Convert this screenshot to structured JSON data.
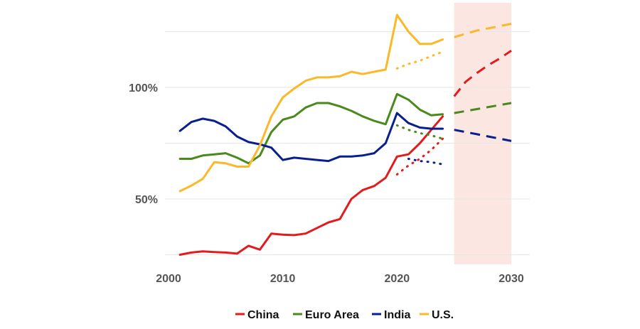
{
  "chart_data": {
    "type": "line",
    "title": "",
    "xlabel": "",
    "ylabel": "",
    "xlim": [
      2000,
      2030
    ],
    "ylim": [
      20,
      140
    ],
    "x_ticks": [
      {
        "value": 2000,
        "label": "2000"
      },
      {
        "value": 2010,
        "label": "2010"
      },
      {
        "value": 2020,
        "label": "2020"
      },
      {
        "value": 2030,
        "label": "2030"
      }
    ],
    "y_ticks": [
      {
        "value": 50,
        "label": "50%"
      },
      {
        "value": 100,
        "label": "100%"
      }
    ],
    "grid": true,
    "shaded_region": {
      "x_start": 2025,
      "x_end": 2030,
      "color": "#fbe6e1"
    },
    "legend_position": "bottom",
    "series": [
      {
        "name": "China",
        "color": "#e41a1c",
        "x": [
          2001,
          2002,
          2003,
          2004,
          2005,
          2006,
          2007,
          2008,
          2009,
          2010,
          2011,
          2012,
          2013,
          2014,
          2015,
          2016,
          2017,
          2018,
          2019,
          2020,
          2021,
          2022,
          2023,
          2024
        ],
        "values": [
          25,
          26,
          26.5,
          26.2,
          26,
          25.5,
          29,
          27.3,
          34.5,
          34,
          33.8,
          34.5,
          37,
          39.5,
          41,
          50,
          54,
          55.8,
          59.5,
          69,
          70,
          75,
          81,
          87
        ],
        "dotted": {
          "x": [
            2020,
            2021,
            2022,
            2023,
            2024
          ],
          "values": [
            61,
            65,
            68,
            72,
            77
          ]
        },
        "projection": {
          "x": [
            2025,
            2026,
            2027,
            2028,
            2029,
            2030
          ],
          "values": [
            96,
            102.5,
            106.5,
            110,
            113,
            116.5
          ]
        }
      },
      {
        "name": "Euro Area",
        "color": "#4a8a1c",
        "x": [
          2001,
          2002,
          2003,
          2004,
          2005,
          2006,
          2007,
          2008,
          2009,
          2010,
          2011,
          2012,
          2013,
          2014,
          2015,
          2016,
          2017,
          2018,
          2019,
          2020,
          2021,
          2022,
          2023,
          2024
        ],
        "values": [
          68,
          68,
          69.5,
          70,
          70.5,
          68.5,
          66,
          69.5,
          80,
          85.5,
          87,
          91,
          93,
          93,
          91.5,
          89.5,
          87,
          85,
          83.5,
          97,
          94.5,
          90,
          87.5,
          88
        ],
        "dotted": {
          "x": [
            2020,
            2021,
            2022,
            2023,
            2024
          ],
          "values": [
            83,
            81,
            79.5,
            78.5,
            77
          ]
        },
        "projection": {
          "x": [
            2025,
            2026,
            2027,
            2028,
            2029,
            2030
          ],
          "values": [
            88.5,
            89.4,
            90.3,
            91.2,
            92.1,
            93
          ]
        }
      },
      {
        "name": "India",
        "color": "#0a1f8f",
        "x": [
          2001,
          2002,
          2003,
          2004,
          2005,
          2006,
          2007,
          2008,
          2009,
          2010,
          2011,
          2012,
          2013,
          2014,
          2015,
          2016,
          2017,
          2018,
          2019,
          2020,
          2021,
          2022,
          2023,
          2024
        ],
        "values": [
          80.5,
          84.5,
          86,
          85,
          82.5,
          78,
          75.5,
          74.5,
          73,
          67.5,
          68.5,
          68,
          67.5,
          67,
          69,
          69,
          69.5,
          70.5,
          75,
          88.5,
          84,
          82,
          81.5,
          81.5
        ],
        "dotted": {
          "x": [
            2021,
            2022,
            2023,
            2024
          ],
          "values": [
            68,
            67,
            66.5,
            65.5
          ]
        },
        "projection": {
          "x": [
            2025,
            2026,
            2027,
            2028,
            2029,
            2030
          ],
          "values": [
            81,
            80,
            79,
            78,
            77,
            76
          ]
        }
      },
      {
        "name": "U.S.",
        "color": "#fbb829",
        "x": [
          2001,
          2002,
          2003,
          2004,
          2005,
          2006,
          2007,
          2008,
          2009,
          2010,
          2011,
          2012,
          2013,
          2014,
          2015,
          2016,
          2017,
          2018,
          2019,
          2020,
          2021,
          2022,
          2023,
          2024
        ],
        "values": [
          53.5,
          56,
          59,
          66.5,
          66,
          64.5,
          64.5,
          74,
          87,
          95.5,
          99.5,
          103,
          104.5,
          104.5,
          105,
          107,
          106,
          107,
          108,
          132.5,
          125,
          119.5,
          119.5,
          121.5
        ],
        "dotted": {
          "x": [
            2020,
            2021,
            2022,
            2023,
            2024
          ],
          "values": [
            108.5,
            110.5,
            112,
            114,
            116
          ]
        },
        "projection": {
          "x": [
            2025,
            2026,
            2027,
            2028,
            2029,
            2030
          ],
          "values": [
            122.5,
            124,
            125.5,
            126.5,
            127.5,
            128.5
          ]
        }
      }
    ]
  }
}
